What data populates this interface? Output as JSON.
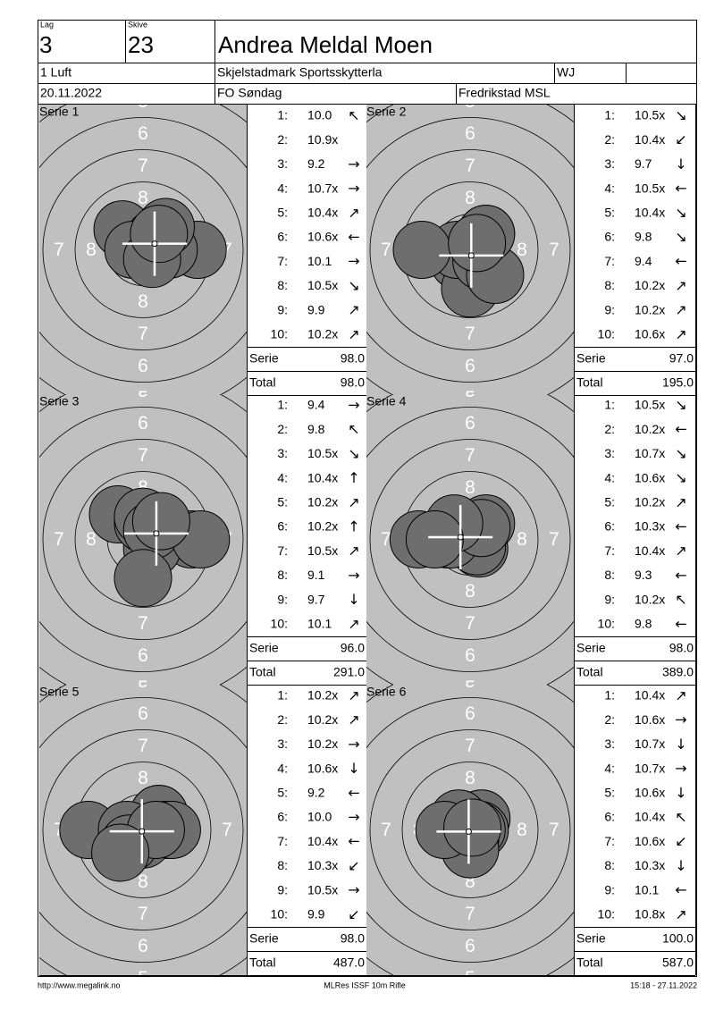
{
  "header": {
    "lag_label": "Lag",
    "lag": "3",
    "skive_label": "Skive",
    "skive": "23",
    "name": "Andrea Meldal Moen",
    "class": "1 Luft",
    "club": "Skjelstadmark Sportsskytterla",
    "category": "WJ",
    "date": "20.11.2022",
    "event": "FO Søndag",
    "venue": "Fredrikstad MSL"
  },
  "target": {
    "ring_labels": [
      "8",
      "7",
      "6",
      "5"
    ]
  },
  "series": [
    {
      "title": "Serie 1",
      "serie_label": "Serie",
      "serie": "98.0",
      "total_label": "Total",
      "total": "98.0",
      "shots": [
        {
          "n": "1:",
          "value": "10.0",
          "arrow": "↖"
        },
        {
          "n": "2:",
          "value": "10.9x"
        },
        {
          "n": "3:",
          "value": "9.2",
          "arrow": "→"
        },
        {
          "n": "4:",
          "value": "10.7x",
          "arrow": "→"
        },
        {
          "n": "5:",
          "value": "10.4x",
          "arrow": "↗"
        },
        {
          "n": "6:",
          "value": "10.6x",
          "arrow": "←"
        },
        {
          "n": "7:",
          "value": "10.1",
          "arrow": "→"
        },
        {
          "n": "8:",
          "value": "10.5x",
          "arrow": "↘"
        },
        {
          "n": "9:",
          "value": "9.9",
          "arrow": "↗"
        },
        {
          "n": "10:",
          "value": "10.2x",
          "arrow": "↗"
        }
      ]
    },
    {
      "title": "Serie 2",
      "serie_label": "Serie",
      "serie": "97.0",
      "total_label": "Total",
      "total": "195.0",
      "shots": [
        {
          "n": "1:",
          "value": "10.5x",
          "arrow": "↘"
        },
        {
          "n": "2:",
          "value": "10.4x",
          "arrow": "↙"
        },
        {
          "n": "3:",
          "value": "9.7",
          "arrow": "↓"
        },
        {
          "n": "4:",
          "value": "10.5x",
          "arrow": "←"
        },
        {
          "n": "5:",
          "value": "10.4x",
          "arrow": "↘"
        },
        {
          "n": "6:",
          "value": "9.8",
          "arrow": "↘"
        },
        {
          "n": "7:",
          "value": "9.4",
          "arrow": "←"
        },
        {
          "n": "8:",
          "value": "10.2x",
          "arrow": "↗"
        },
        {
          "n": "9:",
          "value": "10.2x",
          "arrow": "↗"
        },
        {
          "n": "10:",
          "value": "10.6x",
          "arrow": "↗"
        }
      ]
    },
    {
      "title": "Serie 3",
      "serie_label": "Serie",
      "serie": "96.0",
      "total_label": "Total",
      "total": "291.0",
      "shots": [
        {
          "n": "1:",
          "value": "9.4",
          "arrow": "→"
        },
        {
          "n": "2:",
          "value": "9.8",
          "arrow": "↖"
        },
        {
          "n": "3:",
          "value": "10.5x",
          "arrow": "↘"
        },
        {
          "n": "4:",
          "value": "10.4x",
          "arrow": "↑"
        },
        {
          "n": "5:",
          "value": "10.2x",
          "arrow": "↗"
        },
        {
          "n": "6:",
          "value": "10.2x",
          "arrow": "↑"
        },
        {
          "n": "7:",
          "value": "10.5x",
          "arrow": "↗"
        },
        {
          "n": "8:",
          "value": "9.1",
          "arrow": "→"
        },
        {
          "n": "9:",
          "value": "9.7",
          "arrow": "↓"
        },
        {
          "n": "10:",
          "value": "10.1",
          "arrow": "↗"
        }
      ]
    },
    {
      "title": "Serie 4",
      "serie_label": "Serie",
      "serie": "98.0",
      "total_label": "Total",
      "total": "389.0",
      "shots": [
        {
          "n": "1:",
          "value": "10.5x",
          "arrow": "↘"
        },
        {
          "n": "2:",
          "value": "10.2x",
          "arrow": "←"
        },
        {
          "n": "3:",
          "value": "10.7x",
          "arrow": "↘"
        },
        {
          "n": "4:",
          "value": "10.6x",
          "arrow": "↘"
        },
        {
          "n": "5:",
          "value": "10.2x",
          "arrow": "↗"
        },
        {
          "n": "6:",
          "value": "10.3x",
          "arrow": "←"
        },
        {
          "n": "7:",
          "value": "10.4x",
          "arrow": "↗"
        },
        {
          "n": "8:",
          "value": "9.3",
          "arrow": "←"
        },
        {
          "n": "9:",
          "value": "10.2x",
          "arrow": "↖"
        },
        {
          "n": "10:",
          "value": "9.8",
          "arrow": "←"
        }
      ]
    },
    {
      "title": "Serie 5",
      "serie_label": "Serie",
      "serie": "98.0",
      "total_label": "Total",
      "total": "487.0",
      "shots": [
        {
          "n": "1:",
          "value": "10.2x",
          "arrow": "↗"
        },
        {
          "n": "2:",
          "value": "10.2x",
          "arrow": "↗"
        },
        {
          "n": "3:",
          "value": "10.2x",
          "arrow": "→"
        },
        {
          "n": "4:",
          "value": "10.6x",
          "arrow": "↓"
        },
        {
          "n": "5:",
          "value": "9.2",
          "arrow": "←"
        },
        {
          "n": "6:",
          "value": "10.0",
          "arrow": "→"
        },
        {
          "n": "7:",
          "value": "10.4x",
          "arrow": "←"
        },
        {
          "n": "8:",
          "value": "10.3x",
          "arrow": "↙"
        },
        {
          "n": "9:",
          "value": "10.5x",
          "arrow": "→"
        },
        {
          "n": "10:",
          "value": "9.9",
          "arrow": "↙"
        }
      ]
    },
    {
      "title": "Serie 6",
      "serie_label": "Serie",
      "serie": "100.0",
      "total_label": "Total",
      "total": "587.0",
      "shots": [
        {
          "n": "1:",
          "value": "10.4x",
          "arrow": "↗"
        },
        {
          "n": "2:",
          "value": "10.6x",
          "arrow": "→"
        },
        {
          "n": "3:",
          "value": "10.7x",
          "arrow": "↓"
        },
        {
          "n": "4:",
          "value": "10.7x",
          "arrow": "→"
        },
        {
          "n": "5:",
          "value": "10.6x",
          "arrow": "↓"
        },
        {
          "n": "6:",
          "value": "10.4x",
          "arrow": "↖"
        },
        {
          "n": "7:",
          "value": "10.6x",
          "arrow": "↙"
        },
        {
          "n": "8:",
          "value": "10.3x",
          "arrow": "↓"
        },
        {
          "n": "9:",
          "value": "10.1",
          "arrow": "←"
        },
        {
          "n": "10:",
          "value": "10.8x",
          "arrow": "↗"
        }
      ]
    }
  ],
  "footer": {
    "url": "http://www.megalink.no",
    "program": "MLRes ISSF 10m Rifle",
    "timestamp": "15:18 - 27.11.2022"
  }
}
